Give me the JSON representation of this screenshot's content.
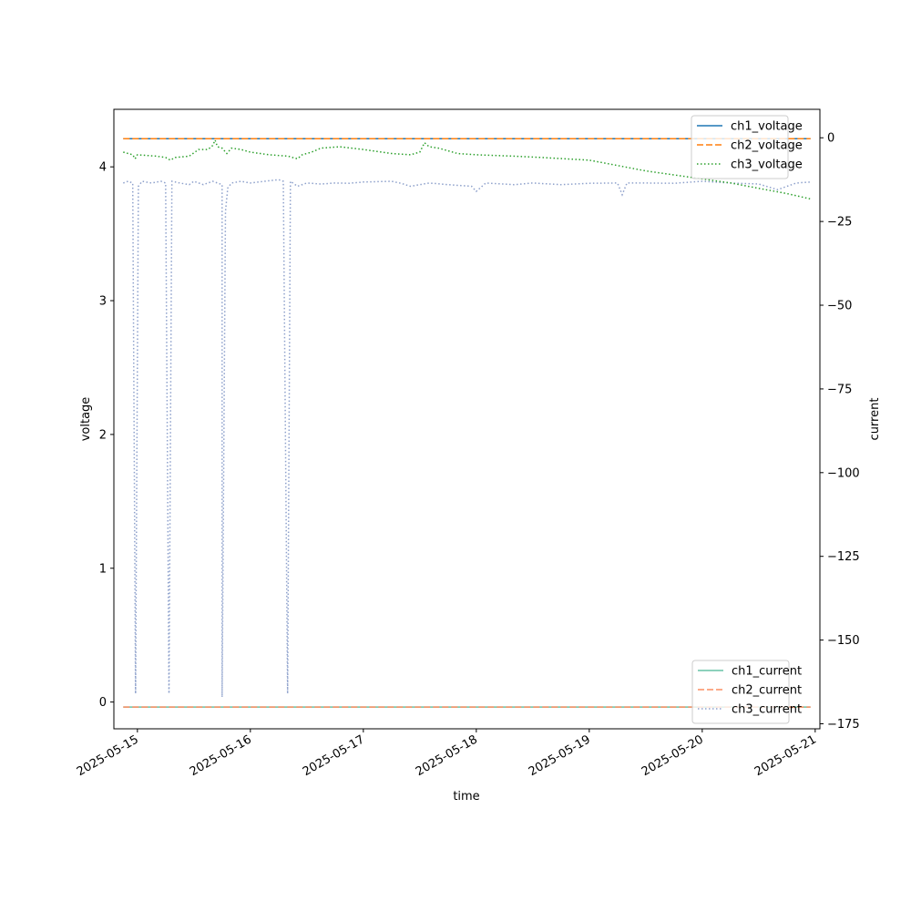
{
  "chart_data": {
    "type": "line",
    "title": "",
    "xlabel": "time",
    "ylabel": "voltage",
    "ylabel_right": "current",
    "xlim": [
      "2025-05-14 19:00",
      "2025-05-21 01:00"
    ],
    "ylim": [
      -0.2,
      4.43
    ],
    "ylim_right": [
      -176.5,
      8.5
    ],
    "x_ticks": [
      "2025-05-15",
      "2025-05-16",
      "2025-05-17",
      "2025-05-18",
      "2025-05-19",
      "2025-05-20",
      "2025-05-21"
    ],
    "y_ticks": [
      0,
      1,
      2,
      3,
      4
    ],
    "y_ticks_right": [
      0,
      -25,
      -50,
      -75,
      -100,
      -125,
      -150,
      -175
    ],
    "grid": false,
    "legend_voltage_position": "upper right",
    "legend_current_position": "lower right",
    "voltage_series": [
      {
        "name": "ch1_voltage",
        "color": "#1f77b4",
        "dash": "solid",
        "points": [
          [
            "2025-05-14 21:00",
            4.21
          ],
          [
            "2025-05-20 23:00",
            4.21
          ]
        ]
      },
      {
        "name": "ch2_voltage",
        "color": "#ff7f0e",
        "dash": "dashed",
        "points": [
          [
            "2025-05-14 21:00",
            4.21
          ],
          [
            "2025-05-20 23:00",
            4.21
          ]
        ]
      },
      {
        "name": "ch3_voltage",
        "color": "#2ca02c",
        "dash": "dotted",
        "points": [
          [
            "2025-05-14 21:00",
            4.11
          ],
          [
            "2025-05-14 23:00",
            4.09
          ],
          [
            "2025-05-14 23:30",
            4.06
          ],
          [
            "2025-05-15 00:00",
            4.09
          ],
          [
            "2025-05-15 04:00",
            4.08
          ],
          [
            "2025-05-15 06:00",
            4.07
          ],
          [
            "2025-05-15 07:00",
            4.05
          ],
          [
            "2025-05-15 08:00",
            4.07
          ],
          [
            "2025-05-15 11:00",
            4.08
          ],
          [
            "2025-05-15 13:00",
            4.13
          ],
          [
            "2025-05-15 15:00",
            4.13
          ],
          [
            "2025-05-15 16:00",
            4.16
          ],
          [
            "2025-05-15 16:30",
            4.2
          ],
          [
            "2025-05-15 17:00",
            4.15
          ],
          [
            "2025-05-15 18:00",
            4.14
          ],
          [
            "2025-05-15 19:00",
            4.1
          ],
          [
            "2025-05-15 20:00",
            4.14
          ],
          [
            "2025-05-15 22:00",
            4.13
          ],
          [
            "2025-05-16 00:00",
            4.11
          ],
          [
            "2025-05-16 04:00",
            4.09
          ],
          [
            "2025-05-16 08:00",
            4.08
          ],
          [
            "2025-05-16 09:00",
            4.07
          ],
          [
            "2025-05-16 10:00",
            4.06
          ],
          [
            "2025-05-16 11:00",
            4.09
          ],
          [
            "2025-05-16 13:00",
            4.11
          ],
          [
            "2025-05-16 15:00",
            4.14
          ],
          [
            "2025-05-16 19:00",
            4.15
          ],
          [
            "2025-05-17 00:00",
            4.13
          ],
          [
            "2025-05-17 06:00",
            4.1
          ],
          [
            "2025-05-17 10:00",
            4.09
          ],
          [
            "2025-05-17 12:00",
            4.11
          ],
          [
            "2025-05-17 13:00",
            4.18
          ],
          [
            "2025-05-17 14:00",
            4.15
          ],
          [
            "2025-05-17 16:00",
            4.14
          ],
          [
            "2025-05-17 20:00",
            4.1
          ],
          [
            "2025-05-18 00:00",
            4.09
          ],
          [
            "2025-05-18 08:00",
            4.08
          ],
          [
            "2025-05-18 14:00",
            4.07
          ],
          [
            "2025-05-19 00:00",
            4.05
          ],
          [
            "2025-05-19 06:00",
            4.01
          ],
          [
            "2025-05-19 12:00",
            3.97
          ],
          [
            "2025-05-19 18:00",
            3.94
          ],
          [
            "2025-05-20 00:00",
            3.91
          ],
          [
            "2025-05-20 06:00",
            3.88
          ],
          [
            "2025-05-20 12:00",
            3.84
          ],
          [
            "2025-05-20 18:00",
            3.8
          ],
          [
            "2025-05-20 23:00",
            3.76
          ]
        ]
      }
    ],
    "current_series": [
      {
        "name": "ch1_current",
        "color": "#66c2a5",
        "dash": "solid",
        "points": [
          [
            "2025-05-14 21:00",
            -170
          ],
          [
            "2025-05-20 23:00",
            -170
          ]
        ]
      },
      {
        "name": "ch2_current",
        "color": "#fc8d62",
        "dash": "dashed",
        "points": [
          [
            "2025-05-14 21:00",
            -170
          ],
          [
            "2025-05-20 23:00",
            -170
          ]
        ]
      },
      {
        "name": "ch3_current",
        "color": "#8da0cb",
        "dash": "dotted",
        "points": [
          [
            "2025-05-14 21:00",
            -13.5
          ],
          [
            "2025-05-14 22:00",
            -13.0
          ],
          [
            "2025-05-14 23:00",
            -13.5
          ],
          [
            "2025-05-14 23:36",
            -166
          ],
          [
            "2025-05-15 00:12",
            -14.5
          ],
          [
            "2025-05-15 01:00",
            -13.0
          ],
          [
            "2025-05-15 03:00",
            -13.5
          ],
          [
            "2025-05-15 05:00",
            -13.0
          ],
          [
            "2025-05-15 06:00",
            -13.5
          ],
          [
            "2025-05-15 06:43",
            -166
          ],
          [
            "2025-05-15 07:20",
            -13.0
          ],
          [
            "2025-05-15 09:00",
            -13.5
          ],
          [
            "2025-05-15 11:00",
            -14.0
          ],
          [
            "2025-05-15 12:00",
            -13.0
          ],
          [
            "2025-05-15 14:00",
            -14.0
          ],
          [
            "2025-05-15 16:00",
            -13.0
          ],
          [
            "2025-05-15 17:00",
            -13.5
          ],
          [
            "2025-05-15 18:00",
            -14.0
          ],
          [
            "2025-05-15 18:00",
            -167
          ],
          [
            "2025-05-15 18:43",
            -22
          ],
          [
            "2025-05-15 19:12",
            -15
          ],
          [
            "2025-05-15 20:00",
            -13.5
          ],
          [
            "2025-05-15 22:00",
            -13.0
          ],
          [
            "2025-05-16 00:00",
            -13.5
          ],
          [
            "2025-05-16 03:00",
            -13.0
          ],
          [
            "2025-05-16 06:00",
            -12.5
          ],
          [
            "2025-05-16 07:00",
            -13.0
          ],
          [
            "2025-05-16 07:55",
            -166
          ],
          [
            "2025-05-16 08:30",
            -13.0
          ],
          [
            "2025-05-16 10:00",
            -14.5
          ],
          [
            "2025-05-16 12:00",
            -13.5
          ],
          [
            "2025-05-16 15:00",
            -13.8
          ],
          [
            "2025-05-16 18:00",
            -13.5
          ],
          [
            "2025-05-16 21:00",
            -13.6
          ],
          [
            "2025-05-17 00:00",
            -13.2
          ],
          [
            "2025-05-17 06:00",
            -13.0
          ],
          [
            "2025-05-17 08:00",
            -13.6
          ],
          [
            "2025-05-17 10:00",
            -14.5
          ],
          [
            "2025-05-17 14:00",
            -13.5
          ],
          [
            "2025-05-17 18:00",
            -14.0
          ],
          [
            "2025-05-17 23:00",
            -14.5
          ],
          [
            "2025-05-18 00:00",
            -16.0
          ],
          [
            "2025-05-18 02:00",
            -13.5
          ],
          [
            "2025-05-18 08:00",
            -14.0
          ],
          [
            "2025-05-18 12:00",
            -13.5
          ],
          [
            "2025-05-18 18:00",
            -14.0
          ],
          [
            "2025-05-19 00:00",
            -13.6
          ],
          [
            "2025-05-19 06:00",
            -13.5
          ],
          [
            "2025-05-19 07:00",
            -17.0
          ],
          [
            "2025-05-19 08:00",
            -13.5
          ],
          [
            "2025-05-19 12:00",
            -13.5
          ],
          [
            "2025-05-19 18:00",
            -13.6
          ],
          [
            "2025-05-20 00:00",
            -13.0
          ],
          [
            "2025-05-20 06:00",
            -13.5
          ],
          [
            "2025-05-20 12:00",
            -13.8
          ],
          [
            "2025-05-20 16:00",
            -15.5
          ],
          [
            "2025-05-20 20:00",
            -13.5
          ],
          [
            "2025-05-20 23:00",
            -13.2
          ]
        ]
      }
    ]
  }
}
